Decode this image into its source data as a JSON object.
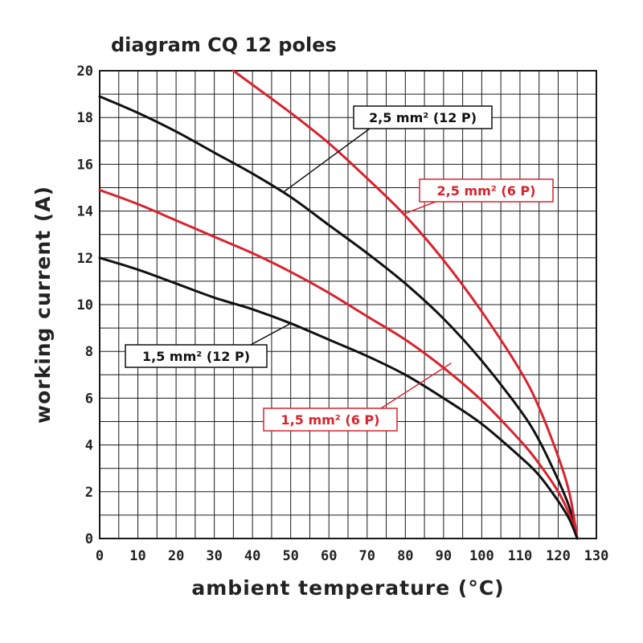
{
  "chart_data": {
    "type": "line",
    "title": "diagram CQ 12 poles",
    "xlabel": "ambient temperature (°C)",
    "ylabel": "working current (A)",
    "xlim": [
      0,
      130
    ],
    "ylim": [
      0,
      20
    ],
    "x_ticks": [
      0,
      10,
      20,
      30,
      40,
      50,
      60,
      70,
      80,
      90,
      100,
      110,
      120,
      130
    ],
    "y_ticks": [
      0,
      2,
      4,
      6,
      8,
      10,
      12,
      14,
      16,
      18,
      20
    ],
    "grid": true,
    "grid_x_step": 5,
    "grid_y_step": 1,
    "series": [
      {
        "name": "2,5 mm² (12 P)",
        "color": "#111111",
        "points": [
          [
            0,
            18.9
          ],
          [
            10,
            18.2
          ],
          [
            20,
            17.4
          ],
          [
            30,
            16.5
          ],
          [
            40,
            15.6
          ],
          [
            50,
            14.6
          ],
          [
            60,
            13.4
          ],
          [
            70,
            12.2
          ],
          [
            80,
            10.9
          ],
          [
            90,
            9.4
          ],
          [
            100,
            7.6
          ],
          [
            110,
            5.5
          ],
          [
            115,
            4.2
          ],
          [
            120,
            2.5
          ],
          [
            123,
            1.3
          ],
          [
            125,
            0
          ]
        ]
      },
      {
        "name": "2,5 mm² (6 P)",
        "color": "#d9232e",
        "points": [
          [
            35,
            20
          ],
          [
            40,
            19.4
          ],
          [
            50,
            18.2
          ],
          [
            60,
            16.9
          ],
          [
            70,
            15.4
          ],
          [
            80,
            13.8
          ],
          [
            90,
            11.9
          ],
          [
            100,
            9.7
          ],
          [
            110,
            7.2
          ],
          [
            115,
            5.6
          ],
          [
            120,
            3.5
          ],
          [
            123,
            1.9
          ],
          [
            125,
            0
          ]
        ]
      },
      {
        "name": "1,5 mm² (6 P)",
        "color": "#d9232e",
        "points": [
          [
            0,
            14.9
          ],
          [
            10,
            14.3
          ],
          [
            20,
            13.6
          ],
          [
            30,
            12.9
          ],
          [
            40,
            12.2
          ],
          [
            50,
            11.4
          ],
          [
            60,
            10.5
          ],
          [
            70,
            9.5
          ],
          [
            80,
            8.5
          ],
          [
            90,
            7.3
          ],
          [
            100,
            5.9
          ],
          [
            110,
            4.2
          ],
          [
            115,
            3.2
          ],
          [
            120,
            2.0
          ],
          [
            123,
            1.0
          ],
          [
            125,
            0
          ]
        ]
      },
      {
        "name": "1,5 mm² (12 P)",
        "color": "#111111",
        "points": [
          [
            0,
            12.0
          ],
          [
            10,
            11.5
          ],
          [
            20,
            10.9
          ],
          [
            30,
            10.3
          ],
          [
            40,
            9.8
          ],
          [
            50,
            9.2
          ],
          [
            60,
            8.5
          ],
          [
            70,
            7.8
          ],
          [
            80,
            7.0
          ],
          [
            90,
            6.0
          ],
          [
            100,
            4.9
          ],
          [
            110,
            3.5
          ],
          [
            115,
            2.7
          ],
          [
            120,
            1.6
          ],
          [
            123,
            0.8
          ],
          [
            125,
            0
          ]
        ]
      }
    ],
    "annotations": [
      {
        "text": "2,5 mm² (12 P)",
        "color": "#111111",
        "target": [
          48,
          14.8
        ]
      },
      {
        "text": "2,5 mm² (6 P)",
        "color": "#d9232e",
        "target": [
          80,
          13.9
        ]
      },
      {
        "text": "1,5 mm² (12 P)",
        "color": "#111111",
        "target": [
          50,
          9.2
        ]
      },
      {
        "text": "1,5 mm² (6 P)",
        "color": "#d9232e",
        "target": [
          92,
          7.5
        ]
      }
    ]
  }
}
